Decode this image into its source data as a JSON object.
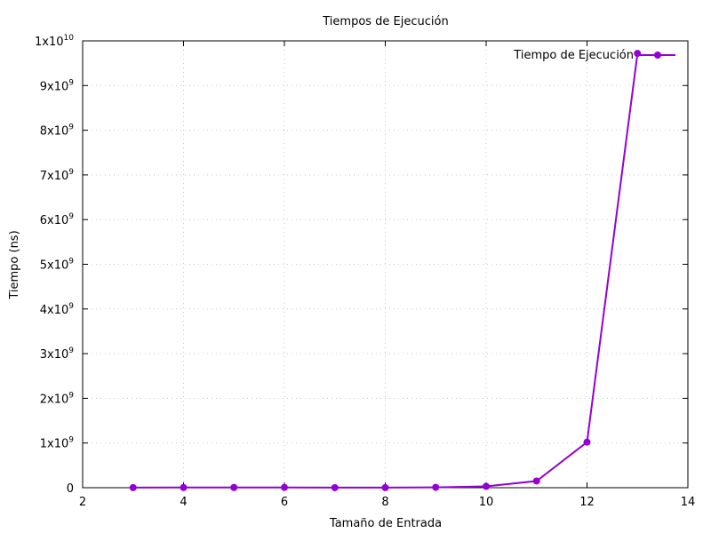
{
  "chart_data": {
    "type": "line",
    "title": "Tiempos de Ejecución",
    "xlabel": "Tamaño de Entrada",
    "ylabel": "Tiempo (ns)",
    "xlim": [
      2,
      14
    ],
    "ylim": [
      0,
      10000000000
    ],
    "grid": true,
    "legend_position": "top-right",
    "x_ticks": [
      2,
      4,
      6,
      8,
      10,
      12,
      14
    ],
    "x_tick_labels": [
      "2",
      "4",
      "6",
      "8",
      "10",
      "12",
      "14"
    ],
    "y_ticks": [
      0,
      1000000000,
      2000000000,
      3000000000,
      4000000000,
      5000000000,
      6000000000,
      7000000000,
      8000000000,
      9000000000,
      10000000000
    ],
    "y_tick_labels": [
      {
        "base": "0",
        "exp": ""
      },
      {
        "base": "1x10",
        "exp": "9"
      },
      {
        "base": "2x10",
        "exp": "9"
      },
      {
        "base": "3x10",
        "exp": "9"
      },
      {
        "base": "4x10",
        "exp": "9"
      },
      {
        "base": "5x10",
        "exp": "9"
      },
      {
        "base": "6x10",
        "exp": "9"
      },
      {
        "base": "7x10",
        "exp": "9"
      },
      {
        "base": "8x10",
        "exp": "9"
      },
      {
        "base": "9x10",
        "exp": "9"
      },
      {
        "base": "1x10",
        "exp": "10"
      }
    ],
    "series": [
      {
        "name": "Tiempo de Ejecución",
        "color": "#9400d3",
        "x": [
          3,
          4,
          5,
          6,
          7,
          8,
          9,
          10,
          11,
          12,
          13
        ],
        "y": [
          2000000,
          4000000,
          5000000,
          6000000,
          1000000,
          2000000,
          8000000,
          30000000,
          150000000,
          1020000000,
          9720000000
        ]
      }
    ]
  }
}
